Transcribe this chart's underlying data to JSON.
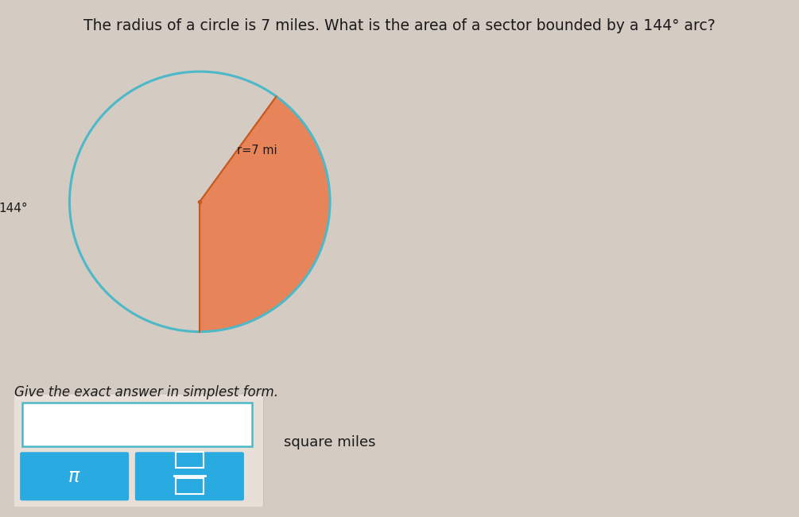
{
  "title": "The radius of a circle is 7 miles. What is the area of a sector bounded by a 144° arc?",
  "title_fontsize": 13.5,
  "sector_color": "#E8845A",
  "sector_edge_color": "#C85A20",
  "circle_color": "#4DB8C8",
  "circle_linewidth": 2.2,
  "sector_theta1": 270,
  "sector_theta2": 414,
  "r_label": "r=7 mi",
  "angle_label": "144°",
  "bg_color": "#D4CBC2",
  "give_text": "Give the exact answer in simplest form.",
  "square_miles_text": "square miles",
  "pi_button_color": "#29ABE2",
  "frac_button_color": "#29ABE2",
  "input_box_color": "#FFFFFF",
  "input_box_border": "#4DB8C8"
}
